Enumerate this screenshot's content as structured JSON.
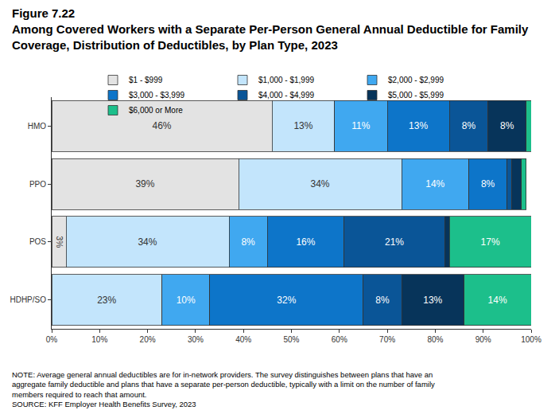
{
  "chart_data": {
    "type": "bar",
    "figure_label": "Figure 7.22",
    "title": "Among Covered Workers with a Separate Per-Person General Annual Deductible for Family Coverage, Distribution of Deductibles, by Plan Type, 2023",
    "notes": [
      "NOTE: Average general annual deductibles are for in-network providers. The survey distinguishes between plans that have an aggregate family deductible and plans that have a separate per-person deductible, typically with a limit on the number of family members required to reach that amount.",
      "SOURCE: KFF Employer Health Benefits Survey, 2023"
    ],
    "orientation": "horizontal",
    "stacked": true,
    "data_labels": true,
    "grid": false,
    "legend": "top",
    "categories": [
      "HMO",
      "PPO",
      "POS",
      "HDHP/SO"
    ],
    "series": [
      {
        "name": "$1 - $999",
        "color": "#e3e3e3",
        "values": [
          46,
          39,
          3,
          0
        ],
        "value_labels": [
          "46%",
          "39%",
          "3%",
          null
        ]
      },
      {
        "name": "$1,000 - $1,999",
        "color": "#c3e5fc",
        "values": [
          13,
          34,
          34,
          23
        ],
        "value_labels": [
          "13%",
          "34%",
          "34%",
          "23%"
        ]
      },
      {
        "name": "$2,000 - $2,999",
        "color": "#40a8f0",
        "values": [
          11,
          14,
          8,
          10
        ],
        "value_labels": [
          "11%",
          "14%",
          "8%",
          "10%"
        ]
      },
      {
        "name": "$3,000 - $3,999",
        "color": "#0d75c9",
        "values": [
          13,
          8,
          16,
          32
        ],
        "value_labels": [
          "13%",
          "8%",
          "16%",
          "32%"
        ]
      },
      {
        "name": "$4,000 - $4,999",
        "color": "#0a5597",
        "values": [
          8,
          1,
          21,
          8
        ],
        "value_labels": [
          "8%",
          null,
          "21%",
          "8%"
        ]
      },
      {
        "name": "$5,000 - $5,999",
        "color": "#07345a",
        "values": [
          8,
          2,
          1,
          13
        ],
        "value_labels": [
          "8%",
          null,
          null,
          "13%"
        ]
      },
      {
        "name": "$6,000 or More",
        "color": "#1cbf8b",
        "values": [
          1,
          1,
          17,
          14
        ],
        "value_labels": [
          null,
          null,
          "17%",
          "14%"
        ]
      }
    ],
    "xlim": [
      0,
      100
    ],
    "xticks": [
      {
        "value": 0,
        "label": "0%"
      },
      {
        "value": 10,
        "label": "10%"
      },
      {
        "value": 20,
        "label": "20%"
      },
      {
        "value": 30,
        "label": "30%"
      },
      {
        "value": 40,
        "label": "40%"
      },
      {
        "value": 50,
        "label": "50%"
      },
      {
        "value": 60,
        "label": "60%"
      },
      {
        "value": 70,
        "label": "70%"
      },
      {
        "value": 80,
        "label": "80%"
      },
      {
        "value": 90,
        "label": "90%"
      },
      {
        "value": 100,
        "label": "100%"
      }
    ]
  }
}
